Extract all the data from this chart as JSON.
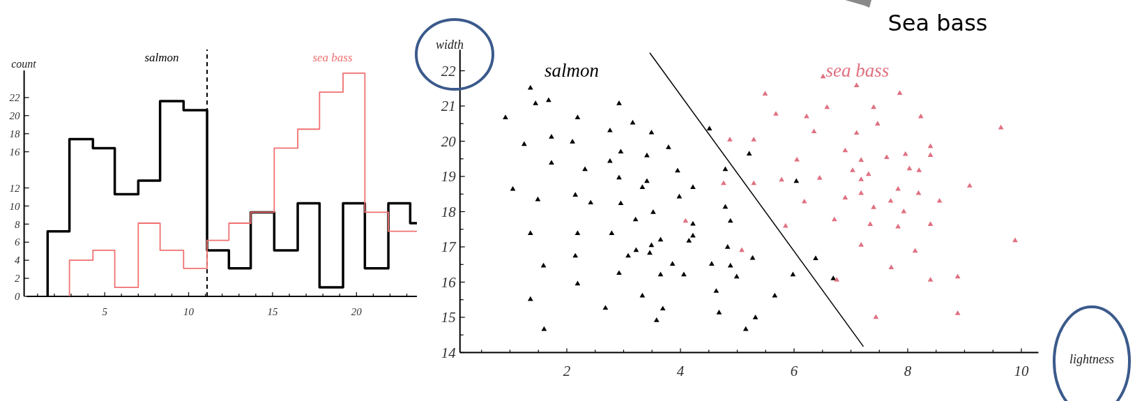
{
  "chart_data": [
    {
      "type": "step",
      "ylabel": "count",
      "xlim": [
        0.2,
        23.6
      ],
      "ylim": [
        0,
        25
      ],
      "xticks": [
        {
          "value": 1,
          "label": null
        },
        {
          "value": 2,
          "label": null
        },
        {
          "value": 3,
          "label": null
        },
        {
          "value": 4,
          "label": null
        },
        5,
        {
          "value": 6,
          "label": null
        },
        {
          "value": 7,
          "label": null
        },
        {
          "value": 8,
          "label": null
        },
        {
          "value": 9,
          "label": null
        },
        10,
        {
          "value": 11,
          "label": null
        },
        {
          "value": 12,
          "label": null
        },
        {
          "value": 13,
          "label": null
        },
        {
          "value": 14,
          "label": null
        },
        15,
        {
          "value": 16,
          "label": null
        },
        {
          "value": 17,
          "label": null
        },
        {
          "value": 18,
          "label": null
        },
        {
          "value": 19,
          "label": null
        },
        20,
        {
          "value": 21,
          "label": null
        },
        {
          "value": 22,
          "label": null
        },
        {
          "value": 23,
          "label": null
        }
      ],
      "yticks": [
        0,
        2,
        4,
        6,
        8,
        10,
        12,
        16,
        18,
        20,
        22
      ],
      "series": [
        {
          "name": "salmon",
          "color": "#000000",
          "x": [
            1.6,
            1.6,
            2.9,
            4.3,
            5.6,
            7.0,
            8.3,
            9.7,
            11.1,
            12.4,
            13.7,
            15.1,
            16.5,
            17.8,
            19.2,
            20.5,
            21.9,
            23.2,
            23.6
          ],
          "values": [
            0,
            7.2,
            17.4,
            16.4,
            11.3,
            12.8,
            21.6,
            20.6,
            5.1,
            3.1,
            9.3,
            5.1,
            10.3,
            1,
            10.3,
            3.1,
            10.3,
            8.1,
            8.1
          ]
        },
        {
          "name": "sea bass",
          "color": "#f07070",
          "x": [
            2.9,
            2.9,
            4.3,
            5.6,
            7.0,
            8.3,
            9.7,
            11.1,
            12.4,
            13.7,
            15.1,
            16.5,
            17.8,
            19.2,
            20.5,
            21.9,
            23.6
          ],
          "values": [
            0,
            4.0,
            5.1,
            1,
            8.1,
            5.1,
            3.1,
            6.2,
            8.1,
            9.3,
            16.4,
            18.5,
            22.6,
            24.7,
            9.3,
            7.2,
            7.2
          ]
        }
      ],
      "ref_lines": [
        {
          "axis": "x",
          "value": 11.1,
          "color": "#000000",
          "line_style": "dashed"
        }
      ]
    },
    {
      "type": "scatter",
      "xlabel": "lightness",
      "ylabel": "width",
      "xlim": [
        0.12,
        10.3
      ],
      "ylim": [
        14,
        22.6
      ],
      "xticks": [
        {
          "value": 0.5,
          "label": null
        },
        {
          "value": 1,
          "label": null
        },
        {
          "value": 1.5,
          "label": null
        },
        2,
        {
          "value": 2.5,
          "label": null
        },
        {
          "value": 3,
          "label": null
        },
        {
          "value": 3.5,
          "label": null
        },
        4,
        {
          "value": 4.5,
          "label": null
        },
        {
          "value": 5,
          "label": null
        },
        {
          "value": 5.5,
          "label": null
        },
        6,
        {
          "value": 6.5,
          "label": null
        },
        {
          "value": 7,
          "label": null
        },
        {
          "value": 7.5,
          "label": null
        },
        8,
        {
          "value": 8.5,
          "label": null
        },
        {
          "value": 9,
          "label": null
        },
        {
          "value": 9.5,
          "label": null
        },
        10
      ],
      "yticks": [
        14,
        {
          "value": 14.5,
          "label": null
        },
        15,
        {
          "value": 15.5,
          "label": null
        },
        16,
        {
          "value": 16.5,
          "label": null
        },
        17,
        {
          "value": 17.5,
          "label": null
        },
        18,
        {
          "value": 18.5,
          "label": null
        },
        19,
        {
          "value": 19.5,
          "label": null
        },
        20,
        {
          "value": 20.5,
          "label": null
        },
        21,
        {
          "value": 21.5,
          "label": null
        },
        22
      ],
      "marker": "triangle",
      "annotations": [
        "Sea bass"
      ],
      "series": [
        {
          "name": "salmon",
          "color": "#000000",
          "x": [
            1.36,
            1.45,
            1.68,
            2.92,
            0.92,
            2.19,
            3.16,
            2.76,
            3.49,
            4.51,
            1.73,
            1.25,
            2.1,
            2.95,
            3.41,
            3.79,
            1.73,
            2.76,
            2.32,
            3.95,
            2.92,
            3.41,
            3.33,
            4.22,
            4.79,
            5.21,
            1.05,
            1.49,
            2.15,
            2.42,
            2.95,
            3.98,
            3.52,
            3.21,
            4.79,
            4.88,
            4.22,
            4.22,
            4.15,
            3.65,
            1.36,
            2.19,
            2.79,
            3.49,
            3.22,
            3.46,
            3.08,
            2.15,
            4.83,
            5.27,
            1.59,
            3.86,
            4.55,
            4.88,
            4.99,
            2.92,
            3.65,
            4.06,
            5.98,
            2.19,
            1.36,
            3.33,
            4.63,
            5.66,
            2.68,
            3.69,
            4.68,
            5.32,
            3.58,
            1.6,
            5.15,
            6.04,
            6.38,
            6.69
          ],
          "values": [
            21.51,
            21.07,
            21.16,
            21.07,
            20.67,
            20.67,
            20.52,
            20.3,
            20.24,
            20.35,
            20.12,
            19.91,
            19.98,
            19.7,
            19.59,
            19.82,
            19.38,
            19.43,
            19.2,
            19.16,
            18.96,
            18.86,
            18.69,
            18.69,
            19.2,
            19.64,
            18.64,
            18.34,
            18.47,
            18.25,
            18.23,
            18.42,
            17.98,
            17.77,
            18.13,
            17.73,
            17.65,
            17.31,
            17.17,
            17.2,
            17.38,
            17.38,
            17.38,
            17.04,
            16.9,
            16.82,
            16.74,
            16.74,
            16.99,
            16.68,
            16.46,
            16.51,
            16.51,
            16.46,
            16.15,
            16.25,
            16.21,
            16.21,
            16.21,
            15.95,
            15.51,
            15.61,
            15.74,
            15.61,
            15.26,
            15.24,
            15.13,
            14.99,
            14.91,
            14.66,
            14.66,
            18.86,
            16.67,
            16.1
          ]
        },
        {
          "name": "sea bass",
          "color": "#e07080",
          "x": [
            5.49,
            5.68,
            4.87,
            5.29,
            4.76,
            5.29,
            5.78,
            4.09,
            5.85,
            5.08,
            6.51,
            7.1,
            7.86,
            6.58,
            7.4,
            6.22,
            8.23,
            7.47,
            6.35,
            7.1,
            9.64,
            6.9,
            8.4,
            8.4,
            6.05,
            7.18,
            7.63,
            7.96,
            7.03,
            7.31,
            8.03,
            8.2,
            6.45,
            7.18,
            7.18,
            7.83,
            8.19,
            9.09,
            6.18,
            6.9,
            7.7,
            8.56,
            7.4,
            7.93,
            6.71,
            7.34,
            7.83,
            8.4,
            7.18,
            8.13,
            9.89,
            7.71,
            8.4,
            8.88,
            6.75,
            7.44,
            8.88
          ],
          "values": [
            21.34,
            20.77,
            20.04,
            20.04,
            18.8,
            18.8,
            18.9,
            17.73,
            17.59,
            16.9,
            21.83,
            21.58,
            21.36,
            20.96,
            20.96,
            20.7,
            20.7,
            20.49,
            20.27,
            20.23,
            20.38,
            19.73,
            19.85,
            19.6,
            19.47,
            19.46,
            19.54,
            19.63,
            19.17,
            19.06,
            19.22,
            19.17,
            18.95,
            18.91,
            18.52,
            18.64,
            18.52,
            18.73,
            18.28,
            18.39,
            18.3,
            18.3,
            18.12,
            18.0,
            17.77,
            17.64,
            17.57,
            17.64,
            17.05,
            16.88,
            17.18,
            16.41,
            16.06,
            16.15,
            16.06,
            15.0,
            15.11
          ]
        },
        {
          "type": "line",
          "marker": "none",
          "color": "#000000",
          "x": [
            3.46,
            7.22
          ],
          "values": [
            22.51,
            14.17
          ]
        }
      ]
    }
  ]
}
